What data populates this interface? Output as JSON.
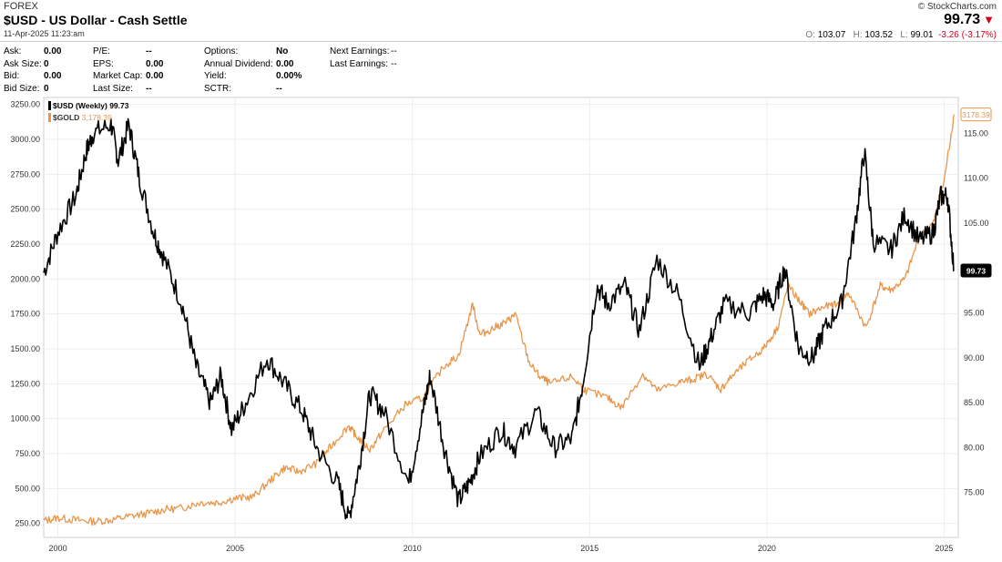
{
  "header": {
    "category": "FOREX",
    "title": "$USD - US Dollar - Cash Settle",
    "timestamp": "11-Apr-2025 11:23:am",
    "brand": "© StockCharts.com",
    "last_price": "99.73",
    "open_label": "O:",
    "open": "103.07",
    "high_label": "H:",
    "high": "103.52",
    "low_label": "L:",
    "low": "99.01",
    "change": "-3.26 (-3.17%)"
  },
  "stats": {
    "col1": [
      [
        "Ask:",
        "0.00"
      ],
      [
        "Ask Size:",
        "0"
      ],
      [
        "Bid:",
        "0.00"
      ],
      [
        "Bid Size:",
        "0"
      ]
    ],
    "col2": [
      [
        "P/E:",
        "--"
      ],
      [
        "EPS:",
        "0.00"
      ],
      [
        "Market Cap:",
        "0.00"
      ],
      [
        "Last Size:",
        "--"
      ]
    ],
    "col3": [
      [
        "Options:",
        "No"
      ],
      [
        "Annual Dividend:",
        "0.00"
      ],
      [
        "Yield:",
        "0.00%"
      ],
      [
        "SCTR:",
        "--"
      ]
    ],
    "col4": [
      [
        "Next Earnings:",
        "--"
      ],
      [
        "Last Earnings:",
        "--"
      ]
    ]
  },
  "colors": {
    "usd": "#000000",
    "gold": "#e8964a",
    "grid": "#eeeeee",
    "down": "#d0021b"
  },
  "chart_data": {
    "type": "line",
    "x_ticks": [
      2000,
      2005,
      2010,
      2015,
      2020,
      2025
    ],
    "xlim": [
      1999.6,
      2025.4
    ],
    "left_axis": {
      "ticks": [
        "3250.00",
        "3000.00",
        "2750.00",
        "2500.00",
        "2250.00",
        "2000.00",
        "1750.00",
        "1500.00",
        "1250.00",
        "1000.00",
        "750.00",
        "500.00",
        "250.00"
      ],
      "ylim": [
        150,
        3300
      ]
    },
    "right_axis": {
      "ticks": [
        "115.00",
        "110.00",
        "105.00",
        "100.00",
        "95.00",
        "90.00",
        "85.00",
        "80.00",
        "75.00"
      ],
      "ylim": [
        70,
        119
      ]
    },
    "series": [
      {
        "name": "$USD (Weekly)",
        "legend_value": "99.73",
        "axis": "right",
        "last_label": "99.73",
        "x": [
          1999.6,
          2000.0,
          2000.5,
          2000.8,
          2001.0,
          2001.5,
          2001.7,
          2002.0,
          2002.3,
          2002.7,
          2003.0,
          2003.5,
          2003.9,
          2004.3,
          2004.6,
          2004.9,
          2005.3,
          2005.9,
          2006.4,
          2006.9,
          2007.3,
          2007.9,
          2008.2,
          2008.5,
          2008.8,
          2009.2,
          2009.9,
          2010.3,
          2010.5,
          2010.9,
          2011.3,
          2011.6,
          2011.9,
          2012.5,
          2012.9,
          2013.5,
          2014.0,
          2014.5,
          2014.8,
          2015.2,
          2015.5,
          2016.0,
          2016.4,
          2016.9,
          2017.5,
          2018.1,
          2018.4,
          2018.8,
          2019.5,
          2019.9,
          2020.2,
          2020.5,
          2020.9,
          2021.3,
          2021.6,
          2022.1,
          2022.5,
          2022.75,
          2023.0,
          2023.5,
          2023.9,
          2024.3,
          2024.7,
          2024.9,
          2025.1,
          2025.28
        ],
        "y": [
          99.5,
          104,
          108,
          113,
          115,
          116,
          112,
          116,
          110,
          104,
          101,
          96,
          89,
          85,
          88,
          82,
          85,
          90,
          87,
          84,
          80,
          76,
          72,
          78,
          86,
          84,
          76,
          84,
          88,
          80,
          74,
          76,
          79,
          82,
          80,
          84,
          80,
          81,
          87,
          98,
          96,
          98,
          93,
          101,
          97,
          89,
          92,
          96,
          95,
          97,
          96,
          100,
          91,
          90,
          93,
          96,
          105,
          113,
          103,
          102,
          106,
          103,
          104,
          108,
          108,
          99.73
        ]
      },
      {
        "name": "$GOLD",
        "legend_value": "3,178.39",
        "axis": "left",
        "last_label": "3178.39",
        "x": [
          1999.6,
          2000.0,
          2000.5,
          2001.0,
          2001.5,
          2002.0,
          2002.5,
          2003.0,
          2003.5,
          2004.0,
          2004.5,
          2005.0,
          2005.5,
          2006.0,
          2006.4,
          2006.8,
          2007.3,
          2007.7,
          2008.2,
          2008.4,
          2008.8,
          2009.2,
          2009.8,
          2010.3,
          2010.9,
          2011.3,
          2011.7,
          2011.9,
          2012.3,
          2012.7,
          2012.9,
          2013.3,
          2013.6,
          2013.9,
          2014.5,
          2014.9,
          2015.5,
          2015.9,
          2016.5,
          2016.9,
          2017.5,
          2017.9,
          2018.3,
          2018.7,
          2019.0,
          2019.5,
          2019.9,
          2020.3,
          2020.6,
          2020.9,
          2021.2,
          2021.6,
          2022.0,
          2022.3,
          2022.8,
          2023.2,
          2023.5,
          2023.9,
          2024.3,
          2024.7,
          2025.0,
          2025.28
        ],
        "y": [
          270,
          290,
          275,
          265,
          275,
          300,
          320,
          350,
          360,
          400,
          400,
          430,
          440,
          560,
          650,
          620,
          680,
          800,
          950,
          880,
          780,
          920,
          1100,
          1150,
          1380,
          1450,
          1820,
          1600,
          1650,
          1700,
          1750,
          1400,
          1300,
          1250,
          1300,
          1200,
          1150,
          1080,
          1320,
          1200,
          1260,
          1280,
          1320,
          1210,
          1300,
          1420,
          1500,
          1650,
          1950,
          1850,
          1750,
          1800,
          1820,
          1900,
          1650,
          1950,
          1920,
          2000,
          2300,
          2400,
          2700,
          3178.39
        ]
      }
    ]
  }
}
